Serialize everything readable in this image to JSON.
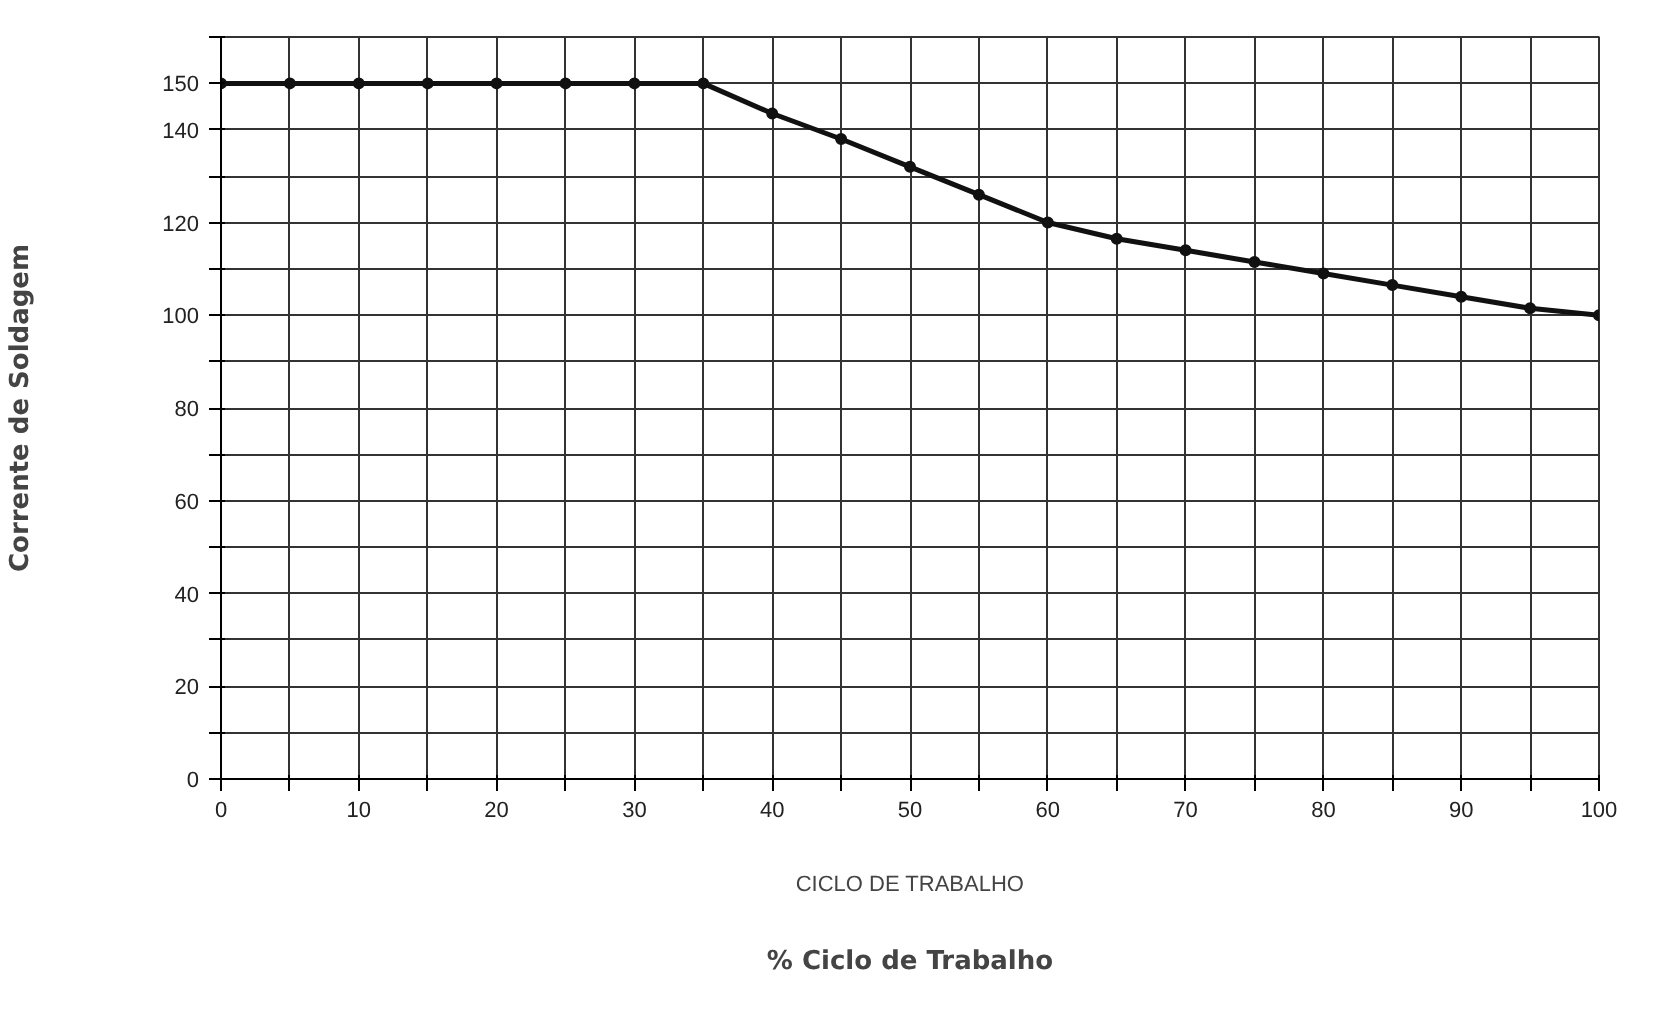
{
  "chart_data": {
    "type": "line",
    "xlabel": "CICLO DE TRABALHO",
    "ylabel": "Corrente de Soldagem",
    "annotations": [
      "% Ciclo de Trabalho"
    ],
    "x": [
      0,
      5,
      10,
      15,
      20,
      25,
      30,
      35,
      40,
      45,
      50,
      55,
      60,
      65,
      70,
      75,
      80,
      85,
      90,
      95,
      100
    ],
    "series": [
      {
        "color": "#111111",
        "values": [
          150,
          150,
          150,
          150,
          150,
          150,
          150,
          150,
          143.5,
          138,
          132,
          126,
          120,
          116.5,
          114,
          111.5,
          109,
          106.5,
          104,
          101.5,
          100
        ]
      }
    ],
    "xlim": [
      0,
      100
    ],
    "ylim": [
      0,
      160
    ],
    "xticks": [
      0,
      {
        "value": 5,
        "label": null
      },
      10,
      {
        "value": 15,
        "label": null
      },
      20,
      {
        "value": 25,
        "label": null
      },
      30,
      {
        "value": 35,
        "label": null
      },
      40,
      {
        "value": 45,
        "label": null
      },
      50,
      {
        "value": 55,
        "label": null
      },
      60,
      {
        "value": 65,
        "label": null
      },
      70,
      {
        "value": 75,
        "label": null
      },
      80,
      {
        "value": 85,
        "label": null
      },
      90,
      {
        "value": 95,
        "label": null
      },
      100
    ],
    "yticks": [
      0,
      {
        "value": 10,
        "label": null
      },
      20,
      {
        "value": 30,
        "label": null
      },
      40,
      {
        "value": 50,
        "label": null
      },
      60,
      {
        "value": 70,
        "label": null
      },
      80,
      {
        "value": 90,
        "label": null
      },
      100,
      {
        "value": 110,
        "label": null
      },
      120,
      {
        "value": 130,
        "label": null
      },
      140,
      150,
      {
        "value": 160,
        "label": null
      }
    ],
    "grid": true,
    "marker": "circle",
    "line_style": "solid"
  }
}
